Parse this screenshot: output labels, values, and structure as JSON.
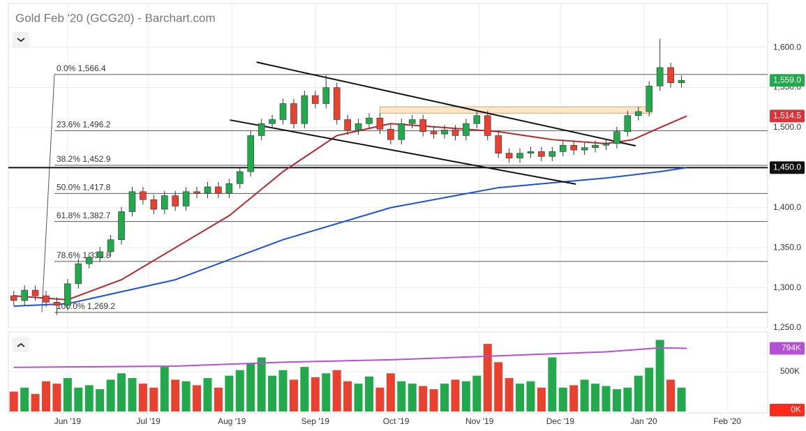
{
  "chart_data": {
    "type": "candlestick",
    "title": "Gold Feb '20 (GCG20) - Barchart.com",
    "xlim": [
      -22,
      260
    ],
    "xticks": [
      {
        "value": 0,
        "label": "Jun '19"
      },
      {
        "value": 30,
        "label": "Jul '19"
      },
      {
        "value": 61,
        "label": "Aug '19"
      },
      {
        "value": 92,
        "label": "Sep '19"
      },
      {
        "value": 122,
        "label": "Oct '19"
      },
      {
        "value": 153,
        "label": "Nov '19"
      },
      {
        "value": 183,
        "label": "Dec '19"
      },
      {
        "value": 214,
        "label": "Jan '20"
      },
      {
        "value": 245,
        "label": "Feb '20"
      }
    ],
    "ylim": [
      1250,
      1655
    ],
    "yticks": [
      {
        "value": 1250,
        "label": "1,250.0"
      },
      {
        "value": 1300,
        "label": "1,300.0"
      },
      {
        "value": 1350,
        "label": "1,350.0"
      },
      {
        "value": 1400,
        "label": "1,400.0"
      },
      {
        "value": 1450,
        "label": "1,450.0"
      },
      {
        "value": 1500,
        "label": "1,500.0"
      },
      {
        "value": 1550,
        "label": "1,550.0"
      },
      {
        "value": 1600,
        "label": "1,600.0"
      }
    ],
    "grid": true,
    "up_color": "#22a94b",
    "down_color": "#e8412f",
    "candles": {
      "x": [
        -20,
        -16,
        -12,
        -8,
        -4,
        0,
        4,
        8,
        12,
        16,
        20,
        24,
        28,
        32,
        36,
        40,
        44,
        48,
        52,
        56,
        60,
        64,
        68,
        72,
        76,
        80,
        84,
        88,
        92,
        96,
        100,
        104,
        108,
        112,
        116,
        120,
        124,
        128,
        132,
        136,
        140,
        144,
        148,
        152,
        156,
        160,
        164,
        168,
        172,
        176,
        180,
        184,
        188,
        192,
        196,
        200,
        204,
        208,
        212,
        216,
        220,
        224,
        228
      ],
      "open": [
        1290,
        1284,
        1297,
        1290,
        1282,
        1278,
        1305,
        1330,
        1338,
        1345,
        1360,
        1395,
        1420,
        1410,
        1398,
        1415,
        1402,
        1420,
        1418,
        1426,
        1418,
        1430,
        1445,
        1490,
        1505,
        1510,
        1530,
        1505,
        1540,
        1530,
        1550,
        1510,
        1497,
        1505,
        1512,
        1498,
        1485,
        1505,
        1510,
        1495,
        1492,
        1497,
        1490,
        1505,
        1515,
        1490,
        1468,
        1462,
        1468,
        1470,
        1464,
        1470,
        1478,
        1472,
        1475,
        1478,
        1480,
        1495,
        1515,
        1520,
        1552,
        1575,
        1556
      ],
      "high": [
        1296,
        1303,
        1303,
        1296,
        1288,
        1311,
        1336,
        1344,
        1351,
        1366,
        1401,
        1426,
        1426,
        1416,
        1421,
        1421,
        1426,
        1426,
        1432,
        1432,
        1436,
        1451,
        1496,
        1511,
        1516,
        1536,
        1536,
        1546,
        1546,
        1566,
        1556,
        1516,
        1511,
        1518,
        1518,
        1504,
        1511,
        1516,
        1516,
        1501,
        1503,
        1503,
        1511,
        1521,
        1521,
        1496,
        1474,
        1474,
        1476,
        1476,
        1476,
        1484,
        1484,
        1481,
        1484,
        1486,
        1501,
        1521,
        1526,
        1558,
        1611,
        1581,
        1565
      ],
      "low": [
        1278,
        1278,
        1284,
        1276,
        1266,
        1272,
        1299,
        1324,
        1332,
        1339,
        1354,
        1389,
        1404,
        1392,
        1392,
        1396,
        1396,
        1412,
        1412,
        1412,
        1412,
        1424,
        1439,
        1484,
        1499,
        1504,
        1499,
        1499,
        1524,
        1524,
        1504,
        1491,
        1491,
        1499,
        1492,
        1479,
        1479,
        1499,
        1489,
        1486,
        1486,
        1484,
        1484,
        1499,
        1484,
        1462,
        1456,
        1456,
        1462,
        1458,
        1458,
        1464,
        1466,
        1466,
        1469,
        1472,
        1474,
        1489,
        1509,
        1514,
        1546,
        1550,
        1550
      ],
      "close": [
        1284,
        1297,
        1290,
        1282,
        1278,
        1305,
        1330,
        1338,
        1345,
        1360,
        1395,
        1420,
        1410,
        1398,
        1415,
        1402,
        1420,
        1418,
        1426,
        1418,
        1430,
        1445,
        1490,
        1505,
        1510,
        1530,
        1505,
        1540,
        1530,
        1550,
        1510,
        1497,
        1505,
        1512,
        1498,
        1485,
        1505,
        1510,
        1495,
        1492,
        1497,
        1490,
        1505,
        1515,
        1490,
        1468,
        1462,
        1468,
        1470,
        1464,
        1470,
        1478,
        1472,
        1475,
        1478,
        1480,
        1495,
        1515,
        1520,
        1552,
        1575,
        1556,
        1559
      ]
    },
    "moving_averages": [
      {
        "color": "#b5282e",
        "x": [
          -20,
          0,
          20,
          40,
          60,
          80,
          100,
          120,
          140,
          160,
          180,
          200,
          210,
          220,
          230
        ],
        "values": [
          1290,
          1285,
          1310,
          1350,
          1390,
          1445,
          1490,
          1505,
          1500,
          1495,
          1485,
          1480,
          1485,
          1500,
          1514.5
        ]
      },
      {
        "color": "#1f4fd8",
        "x": [
          -20,
          0,
          40,
          80,
          120,
          160,
          200,
          220,
          230
        ],
        "values": [
          1277,
          1280,
          1310,
          1360,
          1400,
          1425,
          1437,
          1445,
          1450
        ]
      }
    ],
    "fib_levels": [
      {
        "label": "0.0% 1,566.4",
        "value": 1566.4
      },
      {
        "label": "23.6% 1,496.2",
        "value": 1496.2
      },
      {
        "label": "38.2% 1,452.9",
        "value": 1452.9
      },
      {
        "label": "50.0% 1,417.8",
        "value": 1417.8
      },
      {
        "label": "61.8% 1,382.7",
        "value": 1382.7
      },
      {
        "label": "78.6% 1,332.8",
        "value": 1332.8
      },
      {
        "label": "100.0% 1,269.2",
        "value": 1269.2
      }
    ],
    "trend_lines": [
      {
        "x": [
          70.2,
          211
        ],
        "values": [
          1581.7,
          1477.2
        ]
      },
      {
        "x": [
          60.3,
          188.8
        ],
        "values": [
          1509.5,
          1429.4
        ]
      }
    ],
    "horizontal_line": 1450,
    "zone": {
      "x": [
        116,
        217
      ],
      "values": [
        1518,
        1526
      ]
    },
    "last_labels": [
      {
        "value": 1559,
        "label": "1,559.0",
        "color": "#22a94b"
      },
      {
        "value": 1514.5,
        "label": "1,514.5",
        "color": "#d8343a"
      },
      {
        "value": 1450,
        "label": "1,450.0",
        "color": "#111111"
      }
    ],
    "volume": {
      "ylim": [
        0,
        1000000
      ],
      "yticks": [
        {
          "value": 500000,
          "label": "500K"
        }
      ],
      "values": [
        250000,
        300000,
        220000,
        380000,
        350000,
        420000,
        300000,
        330000,
        280000,
        400000,
        480000,
        420000,
        350000,
        300000,
        560000,
        400000,
        380000,
        330000,
        420000,
        300000,
        450000,
        520000,
        600000,
        680000,
        450000,
        520000,
        400000,
        560000,
        430000,
        480000,
        520000,
        380000,
        350000,
        440000,
        300000,
        480000,
        380000,
        350000,
        320000,
        280000,
        350000,
        400000,
        380000,
        450000,
        850000,
        620000,
        420000,
        350000,
        380000,
        300000,
        680000,
        300000,
        330000,
        400000,
        350000,
        320000,
        280000,
        300000,
        450000,
        550000,
        900000,
        400000,
        300000
      ],
      "average": {
        "color": "#b54fd6",
        "x": [
          -20,
          40,
          80,
          120,
          160,
          200,
          220,
          230
        ],
        "values": [
          555000,
          570000,
          620000,
          650000,
          700000,
          750000,
          800000,
          794000
        ]
      },
      "badges": [
        {
          "value": 794000,
          "label": "794K",
          "color": "#b54fd6"
        },
        {
          "value": 0,
          "label": "0K",
          "color": "#ff2a1a"
        }
      ]
    }
  }
}
